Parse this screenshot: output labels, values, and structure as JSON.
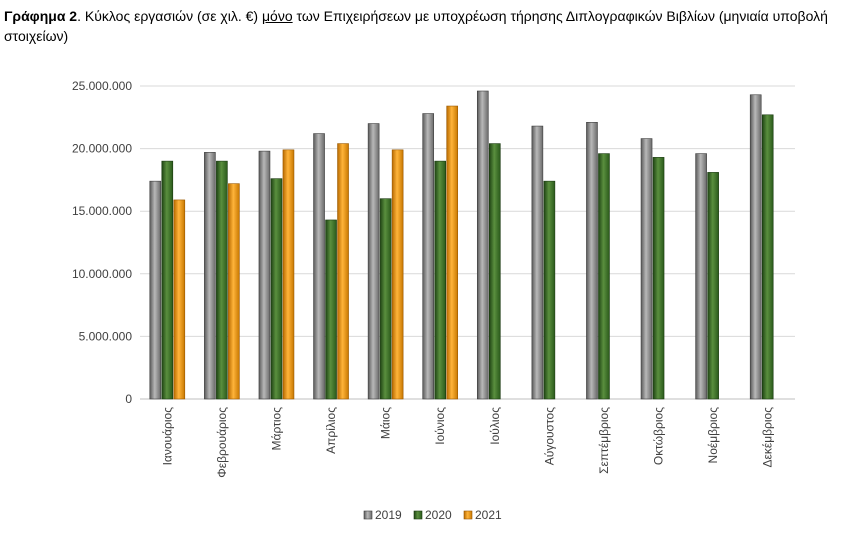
{
  "caption": {
    "label": "Γράφημα 2",
    "text_before": ". Κύκλος εργασιών (σε χιλ. €) ",
    "underlined": "μόνο",
    "text_after": " των Επιχειρήσεων με υποχρέωση τήρησης Διπλογραφικών Βιβλίων (μηνιαία υποβολή στοιχείων)"
  },
  "colors": {
    "2019": "#8c8c8c",
    "2020": "#3d6b2a",
    "2021": "#e8900a",
    "grid": "#d9d9d9",
    "axis": "#bfbfbf"
  },
  "chart_data": {
    "type": "bar",
    "title": "",
    "xlabel": "",
    "ylabel": "",
    "ylim": [
      0,
      25000000
    ],
    "yticks": [
      0,
      5000000,
      10000000,
      15000000,
      20000000,
      25000000
    ],
    "ytick_labels": [
      "0",
      "5.000.000",
      "10.000.000",
      "15.000.000",
      "20.000.000",
      "25.000.000"
    ],
    "grid": true,
    "legend": "bottom",
    "categories": [
      "Ιανουάριος",
      "Φεβρουάριος",
      "Μάρτιος",
      "Απρίλιος",
      "Μάιος",
      "Ιούνιος",
      "Ιούλιος",
      "Αύγουστος",
      "Σεπτέμβριος",
      "Οκτώβριος",
      "Νοέμβριος",
      "Δεκέμβριος"
    ],
    "series": [
      {
        "name": "2019",
        "values": [
          17400000,
          19700000,
          19800000,
          21200000,
          22000000,
          22800000,
          24600000,
          21800000,
          22100000,
          20800000,
          19600000,
          24300000
        ]
      },
      {
        "name": "2020",
        "values": [
          19000000,
          19000000,
          17600000,
          14300000,
          16000000,
          19000000,
          20400000,
          17400000,
          19600000,
          19300000,
          18100000,
          22700000
        ]
      },
      {
        "name": "2021",
        "values": [
          15900000,
          17200000,
          19900000,
          20400000,
          19900000,
          23400000,
          null,
          null,
          null,
          null,
          null,
          null
        ]
      }
    ]
  }
}
